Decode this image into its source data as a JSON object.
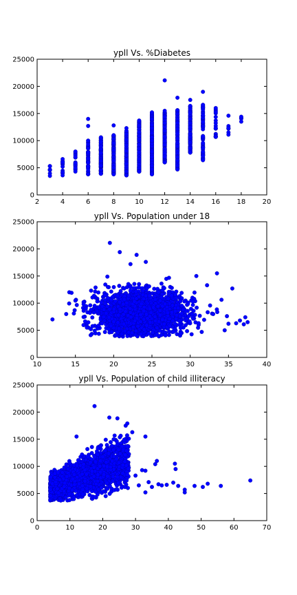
{
  "chart_data": [
    {
      "type": "scatter",
      "title": "ypll Vs. %Diabetes",
      "xlabel": "",
      "ylabel": "",
      "xlim": [
        2,
        20
      ],
      "ylim": [
        0,
        25000
      ],
      "xticks": [
        2,
        4,
        6,
        8,
        10,
        12,
        14,
        16,
        18,
        20
      ],
      "yticks": [
        0,
        5000,
        10000,
        15000,
        20000,
        25000
      ],
      "grid": false,
      "color": "#0000ff",
      "columns": [
        {
          "x": 3,
          "min": 3500,
          "max": 5300,
          "count": 6
        },
        {
          "x": 4,
          "min": 3600,
          "max": 6600,
          "count": 14
        },
        {
          "x": 5,
          "min": 4300,
          "max": 8000,
          "count": 20
        },
        {
          "x": 6,
          "min": 3800,
          "max": 10000,
          "count": 55,
          "outliers": [
            12700,
            14000
          ]
        },
        {
          "x": 7,
          "min": 3900,
          "max": 10600,
          "count": 120
        },
        {
          "x": 8,
          "min": 3800,
          "max": 11000,
          "count": 170,
          "outliers": [
            12800
          ]
        },
        {
          "x": 9,
          "min": 3600,
          "max": 11800,
          "count": 200,
          "outliers": [
            12300
          ]
        },
        {
          "x": 10,
          "min": 4300,
          "max": 13700,
          "count": 220
        },
        {
          "x": 11,
          "min": 3800,
          "max": 15200,
          "count": 230
        },
        {
          "x": 12,
          "min": 6000,
          "max": 15500,
          "count": 220,
          "outliers": [
            21100
          ]
        },
        {
          "x": 13,
          "min": 4700,
          "max": 15600,
          "count": 180,
          "outliers": [
            17900
          ]
        },
        {
          "x": 14,
          "min": 7800,
          "max": 16400,
          "count": 140,
          "outliers": [
            17500
          ]
        },
        {
          "x": 15,
          "min": 6400,
          "max": 16600,
          "count": 80,
          "outliers": [
            19000
          ]
        },
        {
          "x": 16,
          "min": 10700,
          "max": 16000,
          "count": 18
        },
        {
          "x": 17,
          "min": 11100,
          "max": 14600,
          "count": 5
        },
        {
          "x": 18,
          "min": 13500,
          "max": 14400,
          "count": 3
        }
      ]
    },
    {
      "type": "scatter",
      "title": "ypll Vs. Population under 18",
      "xlabel": "",
      "ylabel": "",
      "xlim": [
        10,
        40
      ],
      "ylim": [
        0,
        25000
      ],
      "xticks": [
        10,
        15,
        20,
        25,
        30,
        35,
        40
      ],
      "yticks": [
        0,
        5000,
        10000,
        15000,
        20000,
        25000
      ],
      "grid": false,
      "color": "#0000ff",
      "cluster": {
        "x_center": 23.5,
        "x_spread": 2.8,
        "y_center": 8200,
        "y_spread": 1900,
        "count": 2300
      },
      "points": [
        {
          "x": 12,
          "y": 7000
        },
        {
          "x": 13.8,
          "y": 8000
        },
        {
          "x": 14.2,
          "y": 12000
        },
        {
          "x": 14.5,
          "y": 11900
        },
        {
          "x": 14.8,
          "y": 8100
        },
        {
          "x": 19.5,
          "y": 21100
        },
        {
          "x": 20.8,
          "y": 19400
        },
        {
          "x": 23,
          "y": 18900
        },
        {
          "x": 22.2,
          "y": 17200
        },
        {
          "x": 24.2,
          "y": 17600
        },
        {
          "x": 35.5,
          "y": 12700
        },
        {
          "x": 36,
          "y": 6300
        },
        {
          "x": 36.5,
          "y": 6800
        },
        {
          "x": 37,
          "y": 6100
        },
        {
          "x": 37.5,
          "y": 6500
        },
        {
          "x": 37.2,
          "y": 7400
        },
        {
          "x": 34.5,
          "y": 5000
        },
        {
          "x": 35,
          "y": 6200
        },
        {
          "x": 34.8,
          "y": 7600
        },
        {
          "x": 33.5,
          "y": 15500
        },
        {
          "x": 32.2,
          "y": 13300
        },
        {
          "x": 30.8,
          "y": 15000
        },
        {
          "x": 17,
          "y": 4100
        },
        {
          "x": 16.5,
          "y": 5500
        },
        {
          "x": 31.5,
          "y": 4700
        },
        {
          "x": 33,
          "y": 8000
        }
      ]
    },
    {
      "type": "scatter",
      "title": "ypll Vs. Population of child illiteracy",
      "xlabel": "",
      "ylabel": "",
      "xlim": [
        0,
        70
      ],
      "ylim": [
        0,
        25000
      ],
      "xticks": [
        0,
        10,
        20,
        30,
        40,
        50,
        60,
        70
      ],
      "yticks": [
        0,
        5000,
        10000,
        15000,
        20000,
        25000
      ],
      "grid": false,
      "color": "#0000ff",
      "cluster": {
        "x_min": 4,
        "x_max": 28,
        "y_at_x_min": 6000,
        "y_at_x_max": 11000,
        "y_spread": 1800,
        "count": 2300
      },
      "points": [
        {
          "x": 17.5,
          "y": 21100
        },
        {
          "x": 22,
          "y": 19000
        },
        {
          "x": 27,
          "y": 17500
        },
        {
          "x": 27.5,
          "y": 17900
        },
        {
          "x": 29,
          "y": 16300
        },
        {
          "x": 33,
          "y": 15500
        },
        {
          "x": 12,
          "y": 15500
        },
        {
          "x": 36,
          "y": 10400
        },
        {
          "x": 36.5,
          "y": 11000
        },
        {
          "x": 42,
          "y": 10500
        },
        {
          "x": 42.2,
          "y": 9500
        },
        {
          "x": 41.5,
          "y": 7000
        },
        {
          "x": 43,
          "y": 6400
        },
        {
          "x": 45,
          "y": 5200
        },
        {
          "x": 45,
          "y": 5700
        },
        {
          "x": 48,
          "y": 6400
        },
        {
          "x": 50.5,
          "y": 6200
        },
        {
          "x": 52,
          "y": 6800
        },
        {
          "x": 56,
          "y": 6400
        },
        {
          "x": 65,
          "y": 7400
        },
        {
          "x": 38,
          "y": 6500
        },
        {
          "x": 37,
          "y": 6700
        },
        {
          "x": 33,
          "y": 5200
        },
        {
          "x": 31,
          "y": 6500
        },
        {
          "x": 32,
          "y": 9300
        },
        {
          "x": 33,
          "y": 9200
        },
        {
          "x": 39.5,
          "y": 6600
        },
        {
          "x": 35,
          "y": 6200
        },
        {
          "x": 34,
          "y": 7100
        },
        {
          "x": 30,
          "y": 8300
        }
      ]
    }
  ]
}
